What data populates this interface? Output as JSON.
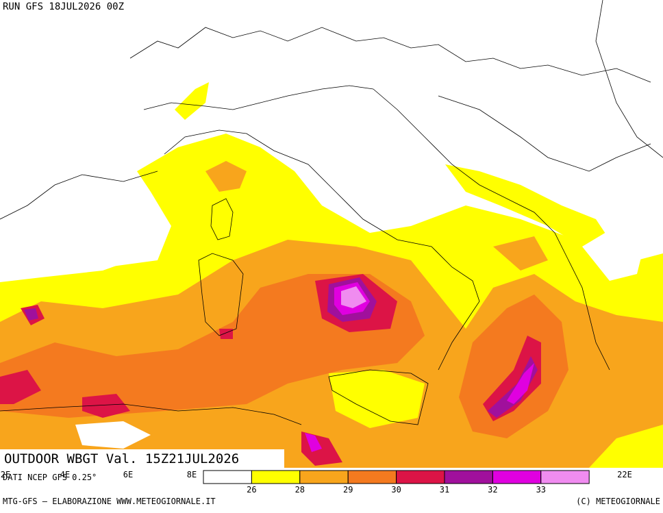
{
  "header": {
    "run": "RUN GFS 18JUL2026 00Z"
  },
  "title": "OUTDOOR WBGT Val. 15Z21JUL2026",
  "source": "DATI NCEP GFS 0.25°",
  "longitude_labels": [
    "2E",
    "4E",
    "6E",
    "8E",
    "22E"
  ],
  "legend": {
    "colors": [
      "#ffffff",
      "#ffff00",
      "#f8a51c",
      "#f47a1f",
      "#dc1446",
      "#a0109c",
      "#e000e0",
      "#f08cf0"
    ],
    "boundaries": [
      26,
      28,
      29,
      30,
      31,
      32,
      33
    ]
  },
  "footer": {
    "left": "MTG-GFS – ELABORAZIONE WWW.METEOGIORNALE.IT",
    "right": "(C) METEOGIORNALE"
  }
}
